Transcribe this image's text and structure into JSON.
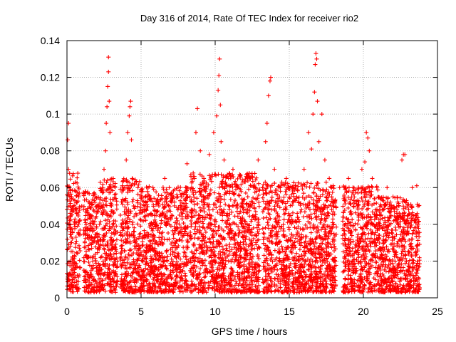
{
  "chart_data": {
    "type": "scatter",
    "title": "Day 316 of 2014, Rate Of TEC Index for receiver rio2",
    "xlabel": "GPS time / hours",
    "ylabel": "ROTI / TECUs",
    "xlim": [
      0,
      25
    ],
    "ylim": [
      0,
      0.14
    ],
    "xticks": [
      0,
      5,
      10,
      15,
      20,
      25
    ],
    "yticks": [
      0,
      0.02,
      0.04,
      0.06,
      0.08,
      0.1,
      0.12,
      0.14
    ],
    "xtick_labels": [
      "0",
      "5",
      "10",
      "15",
      "20",
      "25"
    ],
    "ytick_labels": [
      "0",
      "0.02",
      "0.04",
      "0.06",
      "0.08",
      "0.1",
      "0.12",
      "0.14"
    ],
    "grid": true,
    "marker": "+",
    "color": "#ff0000",
    "series": [
      {
        "name": "rio2",
        "x": [
          0.05,
          0.1,
          0.1,
          0.15,
          0.1,
          0.2,
          0.25,
          0.3,
          0.35,
          0.5,
          0.8,
          1.0,
          1.2,
          1.6,
          1.9,
          2.2,
          2.4,
          2.5,
          2.6,
          2.65,
          2.7,
          2.75,
          2.8,
          2.8,
          2.85,
          2.9,
          2.9,
          2.95,
          3.0,
          3.1,
          3.3,
          3.6,
          3.9,
          4.0,
          4.1,
          4.2,
          4.25,
          4.3,
          4.35,
          4.4,
          4.5,
          4.7,
          5.0,
          5.4,
          5.8,
          6.2,
          6.6,
          6.9,
          7.2,
          7.6,
          7.9,
          8.0,
          8.1,
          8.3,
          8.6,
          8.7,
          8.8,
          9.0,
          9.3,
          9.6,
          9.9,
          10.1,
          10.2,
          10.25,
          10.3,
          10.35,
          10.4,
          10.6,
          10.9,
          11.2,
          11.5,
          11.8,
          12.2,
          12.6,
          12.9,
          13.2,
          13.4,
          13.5,
          13.6,
          13.7,
          13.75,
          14.0,
          14.4,
          14.8,
          15.2,
          15.5,
          15.8,
          16.0,
          16.3,
          16.5,
          16.6,
          16.7,
          16.75,
          16.8,
          16.85,
          16.9,
          17.0,
          17.2,
          17.4,
          17.7,
          18.0,
          18.4,
          18.7,
          19.0,
          19.3,
          19.6,
          19.9,
          20.1,
          20.2,
          20.3,
          20.4,
          20.6,
          20.9,
          21.2,
          21.6,
          22.0,
          22.4,
          22.6,
          22.7,
          22.8,
          23.0,
          23.3,
          23.5,
          23.6,
          23.7
        ],
        "y": [
          0.086,
          0.095,
          0.07,
          0.06,
          0.04,
          0.05,
          0.03,
          0.055,
          0.02,
          0.04,
          0.035,
          0.05,
          0.03,
          0.045,
          0.055,
          0.04,
          0.06,
          0.07,
          0.08,
          0.095,
          0.104,
          0.115,
          0.123,
          0.131,
          0.107,
          0.09,
          0.06,
          0.045,
          0.05,
          0.04,
          0.035,
          0.045,
          0.06,
          0.075,
          0.09,
          0.099,
          0.104,
          0.107,
          0.086,
          0.065,
          0.05,
          0.045,
          0.055,
          0.045,
          0.06,
          0.05,
          0.065,
          0.06,
          0.055,
          0.045,
          0.05,
          0.06,
          0.073,
          0.055,
          0.065,
          0.09,
          0.103,
          0.08,
          0.06,
          0.078,
          0.09,
          0.099,
          0.113,
          0.121,
          0.13,
          0.105,
          0.085,
          0.075,
          0.065,
          0.07,
          0.06,
          0.05,
          0.055,
          0.06,
          0.075,
          0.06,
          0.085,
          0.095,
          0.11,
          0.118,
          0.12,
          0.07,
          0.06,
          0.065,
          0.06,
          0.055,
          0.062,
          0.07,
          0.09,
          0.081,
          0.1,
          0.112,
          0.127,
          0.133,
          0.13,
          0.107,
          0.085,
          0.1,
          0.075,
          0.065,
          0.05,
          0.06,
          0.055,
          0.065,
          0.06,
          0.05,
          0.07,
          0.074,
          0.09,
          0.087,
          0.08,
          0.065,
          0.06,
          0.05,
          0.06,
          0.055,
          0.05,
          0.075,
          0.078,
          0.078,
          0.05,
          0.06,
          0.045,
          0.061,
          0.04
        ]
      }
    ]
  }
}
